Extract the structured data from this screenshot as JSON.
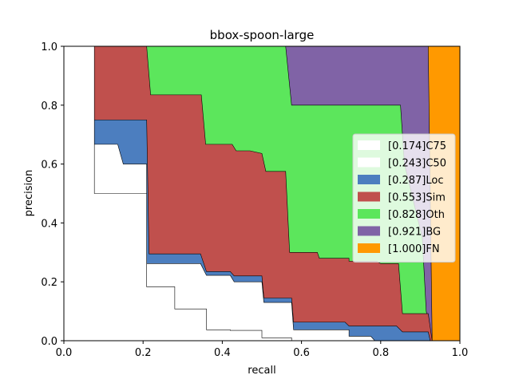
{
  "chart_data": {
    "type": "area",
    "title": "bbox-spoon-large",
    "xlabel": "recall",
    "ylabel": "precision",
    "xlim": [
      0,
      1
    ],
    "ylim": [
      0,
      1
    ],
    "xticks": [
      0.0,
      0.2,
      0.4,
      0.6,
      0.8,
      1.0
    ],
    "yticks": [
      0.0,
      0.2,
      0.4,
      0.6,
      0.8,
      1.0
    ],
    "xtick_labels": [
      "0.0",
      "0.2",
      "0.4",
      "0.6",
      "0.8",
      "1.0"
    ],
    "ytick_labels": [
      "0.0",
      "0.2",
      "0.4",
      "0.6",
      "0.8",
      "1.0"
    ],
    "grid": false,
    "legend_position": "center-right",
    "series": [
      {
        "name": "[0.174]C75",
        "color": "#ffffff",
        "points": [
          [
            0.0,
            1.0
          ],
          [
            0.077,
            1.0
          ],
          [
            0.077,
            0.5
          ],
          [
            0.209,
            0.5
          ],
          [
            0.209,
            0.183
          ],
          [
            0.245,
            0.183
          ],
          [
            0.28,
            0.183
          ],
          [
            0.28,
            0.108
          ],
          [
            0.345,
            0.108
          ],
          [
            0.36,
            0.108
          ],
          [
            0.36,
            0.037
          ],
          [
            0.42,
            0.037
          ],
          [
            0.42,
            0.035
          ],
          [
            0.5,
            0.035
          ],
          [
            0.5,
            0.01
          ],
          [
            0.575,
            0.01
          ],
          [
            0.575,
            0.0
          ],
          [
            1.0,
            0.0
          ]
        ]
      },
      {
        "name": "[0.243]C50",
        "color": "#ffffff",
        "points": [
          [
            0.0,
            1.0
          ],
          [
            0.077,
            1.0
          ],
          [
            0.077,
            0.667
          ],
          [
            0.136,
            0.667
          ],
          [
            0.15,
            0.6
          ],
          [
            0.209,
            0.6
          ],
          [
            0.209,
            0.262
          ],
          [
            0.345,
            0.262
          ],
          [
            0.36,
            0.222
          ],
          [
            0.42,
            0.222
          ],
          [
            0.43,
            0.2
          ],
          [
            0.5,
            0.2
          ],
          [
            0.505,
            0.13
          ],
          [
            0.575,
            0.13
          ],
          [
            0.58,
            0.037
          ],
          [
            0.72,
            0.037
          ],
          [
            0.72,
            0.015
          ],
          [
            0.775,
            0.015
          ],
          [
            0.785,
            0.0
          ],
          [
            1.0,
            0.0
          ]
        ]
      },
      {
        "name": "[0.287]Loc",
        "color": "#4c7ebf",
        "points": [
          [
            0.0,
            1.0
          ],
          [
            0.077,
            1.0
          ],
          [
            0.077,
            0.75
          ],
          [
            0.209,
            0.75
          ],
          [
            0.215,
            0.295
          ],
          [
            0.345,
            0.295
          ],
          [
            0.36,
            0.235
          ],
          [
            0.42,
            0.235
          ],
          [
            0.43,
            0.22
          ],
          [
            0.5,
            0.22
          ],
          [
            0.505,
            0.145
          ],
          [
            0.575,
            0.145
          ],
          [
            0.58,
            0.063
          ],
          [
            0.71,
            0.063
          ],
          [
            0.72,
            0.05
          ],
          [
            0.84,
            0.05
          ],
          [
            0.855,
            0.03
          ],
          [
            0.92,
            0.03
          ],
          [
            0.925,
            0.0
          ],
          [
            1.0,
            0.0
          ]
        ]
      },
      {
        "name": "[0.553]Sim",
        "color": "#c0504d",
        "points": [
          [
            0.0,
            1.0
          ],
          [
            0.209,
            1.0
          ],
          [
            0.219,
            0.835
          ],
          [
            0.347,
            0.835
          ],
          [
            0.358,
            0.667
          ],
          [
            0.425,
            0.667
          ],
          [
            0.435,
            0.645
          ],
          [
            0.47,
            0.645
          ],
          [
            0.5,
            0.636
          ],
          [
            0.51,
            0.575
          ],
          [
            0.56,
            0.575
          ],
          [
            0.57,
            0.3
          ],
          [
            0.64,
            0.3
          ],
          [
            0.645,
            0.28
          ],
          [
            0.72,
            0.28
          ],
          [
            0.72,
            0.27
          ],
          [
            0.79,
            0.27
          ],
          [
            0.8,
            0.262
          ],
          [
            0.845,
            0.262
          ],
          [
            0.855,
            0.092
          ],
          [
            0.92,
            0.092
          ],
          [
            0.93,
            0.0
          ],
          [
            1.0,
            0.0
          ]
        ]
      },
      {
        "name": "[0.828]Oth",
        "color": "#5ce65c",
        "points": [
          [
            0.0,
            1.0
          ],
          [
            0.56,
            1.0
          ],
          [
            0.575,
            0.8
          ],
          [
            0.85,
            0.8
          ],
          [
            0.86,
            0.6
          ],
          [
            0.905,
            0.35
          ],
          [
            0.915,
            0.1
          ],
          [
            0.93,
            0.0
          ],
          [
            1.0,
            0.0
          ]
        ]
      },
      {
        "name": "[0.921]BG",
        "color": "#8063a6",
        "points": [
          [
            0.0,
            1.0
          ],
          [
            0.92,
            1.0
          ],
          [
            0.93,
            0.0
          ],
          [
            1.0,
            0.0
          ]
        ]
      },
      {
        "name": "[1.000]FN",
        "color": "#ff9900",
        "points": [
          [
            0.0,
            1.0
          ],
          [
            1.0,
            1.0
          ],
          [
            1.0,
            0.0
          ]
        ]
      }
    ]
  }
}
